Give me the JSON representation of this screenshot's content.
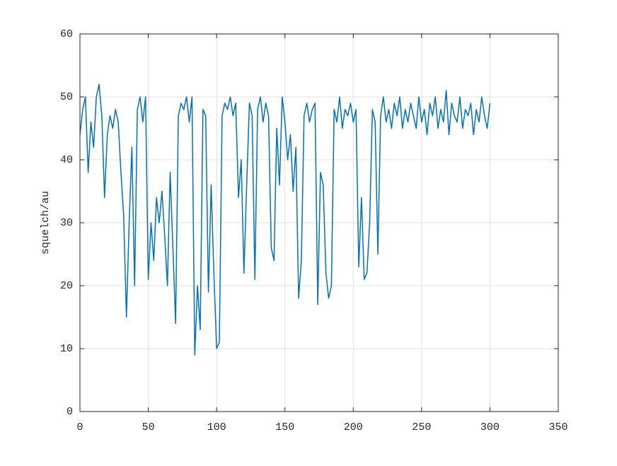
{
  "chart_data": {
    "type": "line",
    "ylabel": "squelch/au",
    "color": "#0072bd",
    "grid": true,
    "xlim": [
      0,
      350
    ],
    "xticks": [
      0,
      50,
      100,
      150,
      200,
      250,
      300,
      350
    ],
    "ylim": [
      0,
      60
    ],
    "yticks": [
      0,
      10,
      20,
      30,
      40,
      50,
      60
    ],
    "x": [
      0,
      2,
      4,
      6,
      8,
      10,
      12,
      14,
      16,
      18,
      20,
      22,
      24,
      26,
      28,
      30,
      32,
      34,
      36,
      38,
      40,
      42,
      44,
      46,
      48,
      50,
      52,
      54,
      56,
      58,
      60,
      62,
      64,
      66,
      68,
      70,
      72,
      74,
      76,
      78,
      80,
      82,
      84,
      86,
      88,
      90,
      92,
      94,
      96,
      98,
      100,
      102,
      104,
      106,
      108,
      110,
      112,
      114,
      116,
      118,
      120,
      122,
      124,
      126,
      128,
      130,
      132,
      134,
      136,
      138,
      140,
      142,
      144,
      146,
      148,
      150,
      152,
      154,
      156,
      158,
      160,
      162,
      164,
      166,
      168,
      170,
      172,
      174,
      176,
      178,
      180,
      182,
      184,
      186,
      188,
      190,
      192,
      194,
      196,
      198,
      200,
      202,
      204,
      206,
      208,
      210,
      212,
      214,
      216,
      218,
      220,
      222,
      224,
      226,
      228,
      230,
      232,
      234,
      236,
      238,
      240,
      242,
      244,
      246,
      248,
      250,
      252,
      254,
      256,
      258,
      260,
      262,
      264,
      266,
      268,
      270,
      272,
      274,
      276,
      278,
      280,
      282,
      284,
      286,
      288,
      290,
      292,
      294,
      296,
      298,
      300
    ],
    "values": [
      44,
      48,
      50,
      38,
      46,
      42,
      50,
      52,
      47,
      34,
      44,
      47,
      45,
      48,
      46,
      38,
      31,
      15,
      30,
      42,
      20,
      48,
      50,
      46,
      50,
      21,
      30,
      24,
      34,
      30,
      35,
      28,
      20,
      38,
      26,
      14,
      47,
      49,
      48,
      50,
      46,
      50,
      9,
      20,
      13,
      48,
      47,
      19,
      36,
      22,
      10,
      11,
      47,
      49,
      48,
      50,
      47,
      49,
      34,
      40,
      22,
      36,
      49,
      47,
      21,
      48,
      50,
      46,
      49,
      47,
      26,
      24,
      45,
      36,
      50,
      46,
      40,
      44,
      35,
      42,
      18,
      24,
      47,
      49,
      46,
      48,
      49,
      17,
      38,
      36,
      22,
      18,
      20,
      48,
      46,
      50,
      45,
      48,
      47,
      49,
      46,
      48,
      23,
      34,
      21,
      22,
      30,
      48,
      46,
      25,
      47,
      50,
      46,
      48,
      45,
      49,
      47,
      50,
      45,
      48,
      46,
      49,
      47,
      45,
      50,
      46,
      48,
      44,
      49,
      47,
      50,
      45,
      48,
      46,
      51,
      44,
      49,
      47,
      46,
      50,
      45,
      48,
      47,
      49,
      44,
      48,
      46,
      50,
      47,
      45,
      49
    ]
  }
}
